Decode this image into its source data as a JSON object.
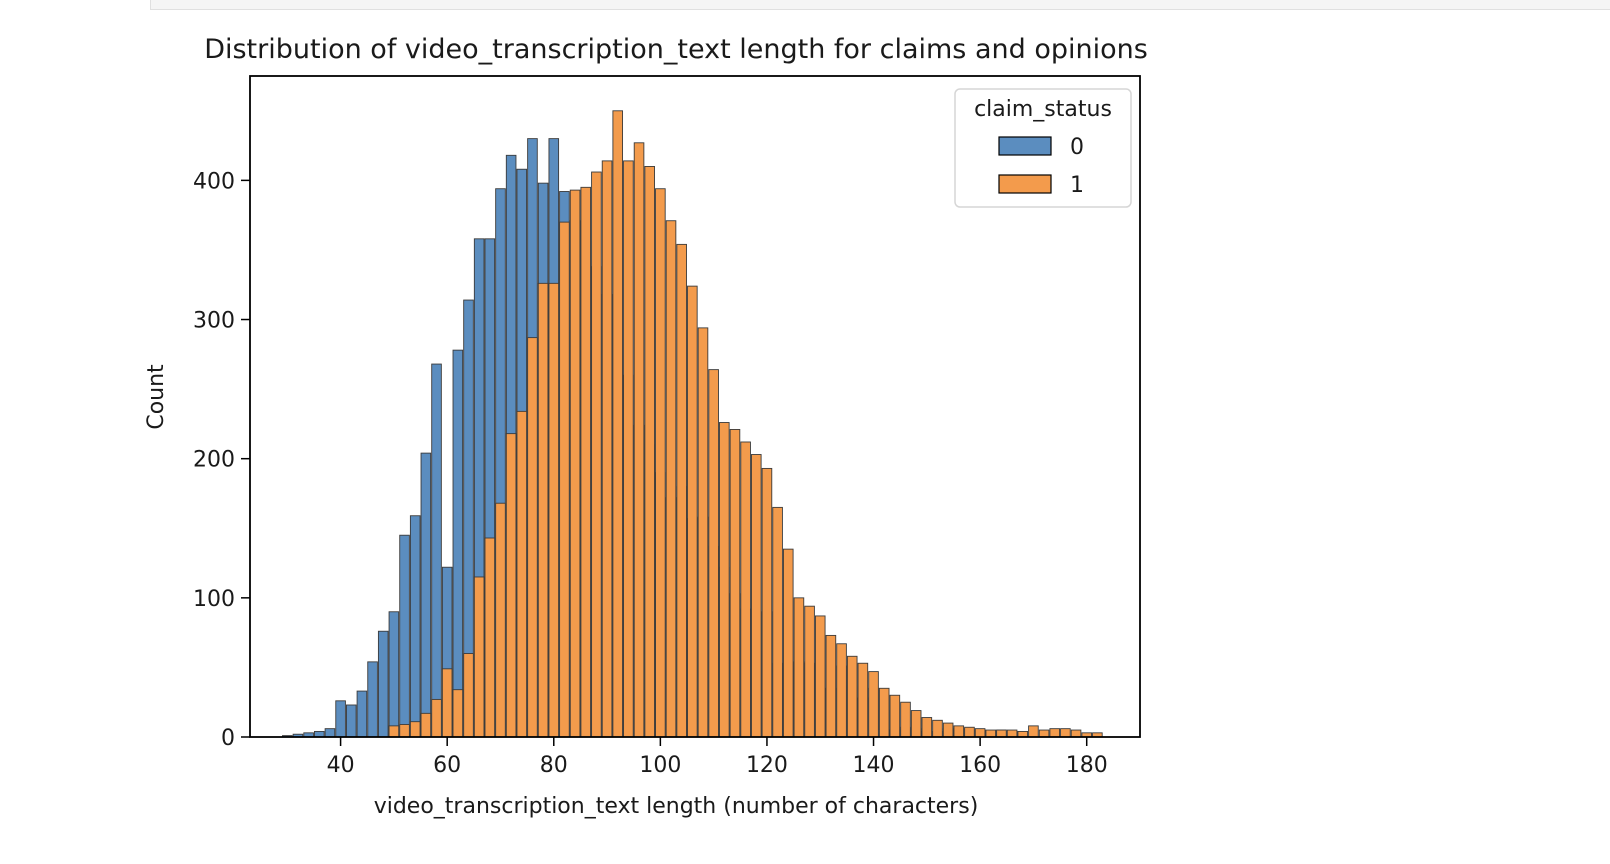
{
  "chart_data": {
    "type": "bar",
    "title": "Distribution of video_transcription_text length for claims and opinions",
    "xlabel": "video_transcription_text length (number of characters)",
    "ylabel": "Count",
    "xlim": [
      23,
      190
    ],
    "ylim": [
      0,
      475
    ],
    "xticks": [
      40,
      60,
      80,
      100,
      120,
      140,
      160,
      180
    ],
    "yticks": [
      0,
      100,
      200,
      300,
      400
    ],
    "bin_width": 4,
    "grid": false,
    "legend": {
      "title": "claim_status",
      "placement": "top-right",
      "entries": [
        "0",
        "1"
      ]
    },
    "series": [
      {
        "name": "0",
        "color": "#5b8dbf",
        "x": [
          31,
          33,
          35,
          37,
          39,
          41,
          43,
          45,
          47,
          49,
          51,
          53,
          55,
          57,
          59,
          61,
          63,
          65,
          67,
          69,
          71,
          73,
          75,
          77,
          79,
          81,
          83,
          85,
          87,
          89,
          91,
          93,
          95,
          97,
          99,
          101,
          103,
          105,
          107,
          109,
          111,
          113,
          115,
          117,
          119,
          121,
          123,
          125,
          127,
          129,
          131,
          133,
          135,
          137,
          139,
          141,
          143,
          145,
          147,
          149,
          151,
          153,
          155,
          157,
          159,
          161,
          163,
          165,
          167
        ],
        "values": [
          1,
          2,
          3,
          4,
          6,
          26,
          23,
          33,
          54,
          76,
          90,
          145,
          159,
          204,
          268,
          122,
          278,
          314,
          358,
          358,
          394,
          418,
          408,
          430,
          398,
          430,
          392,
          371,
          356,
          338,
          318,
          300,
          260,
          224,
          210,
          190,
          172,
          180,
          157,
          158,
          137,
          122,
          103,
          92,
          62,
          90,
          53,
          49,
          54,
          53,
          51,
          35,
          51,
          36,
          28,
          35,
          19,
          5,
          7,
          6,
          4,
          4,
          6,
          5,
          6,
          5,
          4,
          5,
          4
        ],
        "bar_offset": 0
      },
      {
        "name": "1",
        "color": "#f39b4c",
        "x": [
          31,
          33,
          35,
          37,
          39,
          41,
          43,
          45,
          47,
          49,
          51,
          53,
          55,
          57,
          59,
          61,
          63,
          65,
          67,
          69,
          71,
          73,
          75,
          77,
          79,
          81,
          83,
          85,
          87,
          89,
          91,
          93,
          95,
          97,
          99,
          101,
          103,
          105,
          107,
          109,
          111,
          113,
          115,
          117,
          119,
          121,
          123,
          125,
          127,
          129,
          131,
          133,
          135,
          137,
          139,
          141,
          143,
          145,
          147,
          149,
          151,
          153,
          155,
          157,
          159,
          161,
          163,
          165,
          167,
          169,
          171,
          173,
          175,
          177,
          179,
          181
        ],
        "values": [
          0,
          0,
          0,
          0,
          0,
          0,
          0,
          0,
          0,
          8,
          9,
          11,
          17,
          27,
          49,
          34,
          60,
          115,
          143,
          168,
          218,
          234,
          287,
          326,
          326,
          370,
          393,
          395,
          406,
          414,
          450,
          414,
          427,
          410,
          394,
          371,
          354,
          324,
          294,
          264,
          226,
          221,
          212,
          203,
          193,
          165,
          135,
          100,
          94,
          87,
          73,
          67,
          58,
          53,
          47,
          35,
          30,
          25,
          19,
          14,
          12,
          10,
          8,
          7,
          6,
          5,
          5,
          5,
          4,
          8,
          5,
          6,
          6,
          5,
          3,
          3
        ],
        "bar_offset": 1
      }
    ]
  }
}
